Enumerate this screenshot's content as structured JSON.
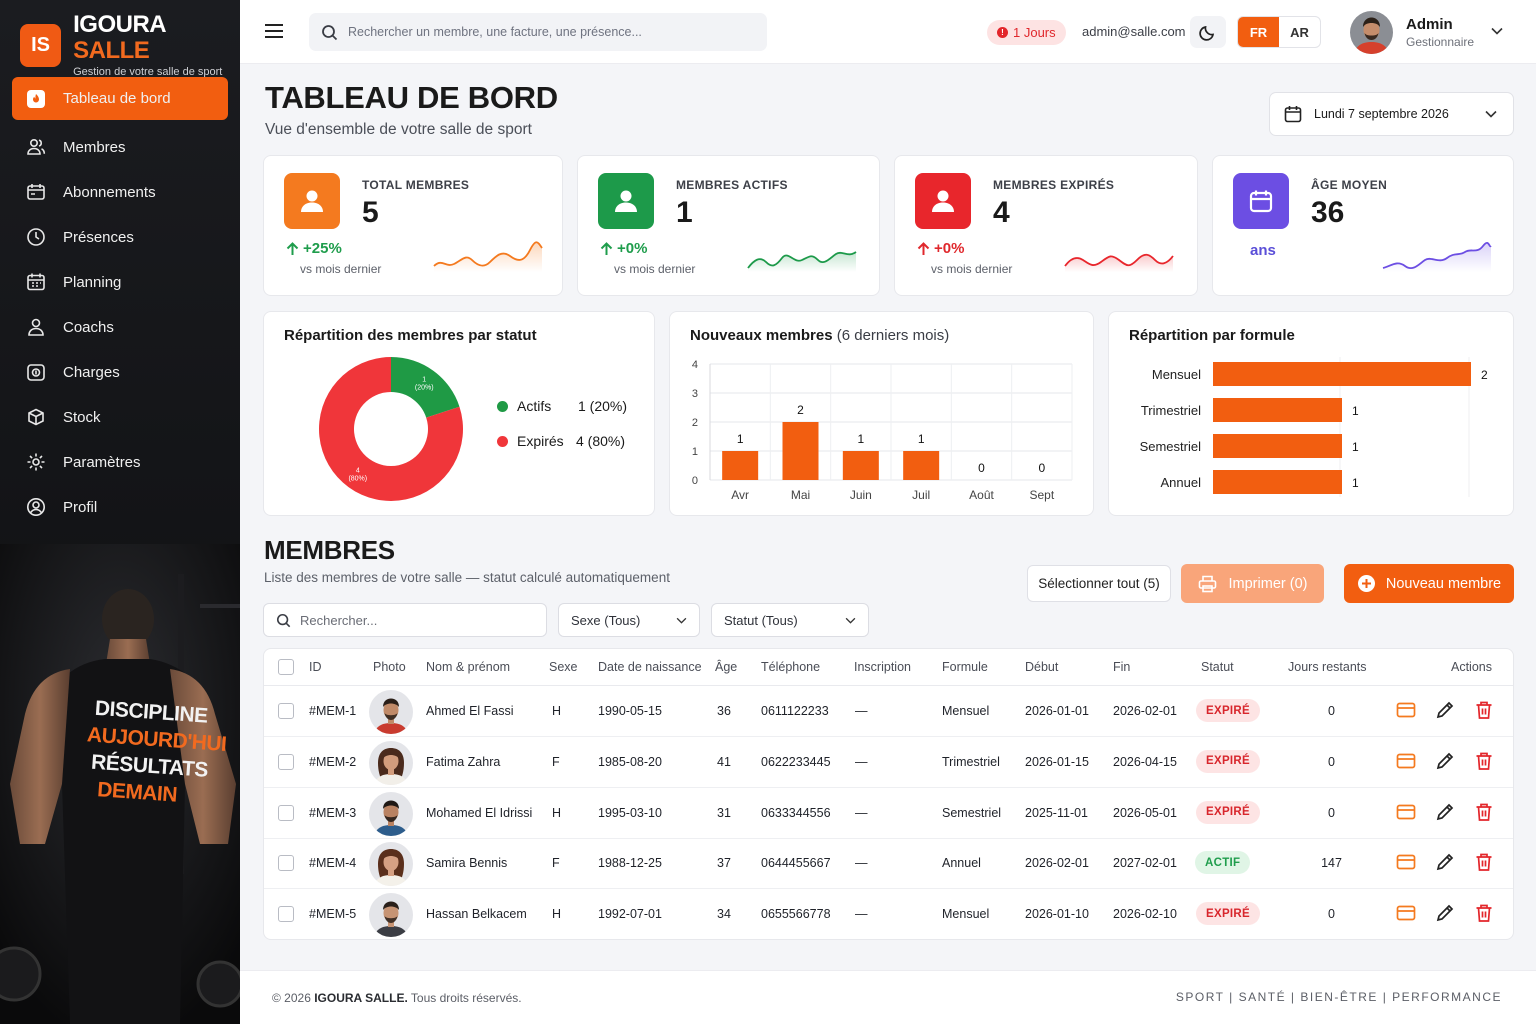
{
  "brand": {
    "logo": "IS",
    "name_main": "IGOURA",
    "name_accent": "SALLE",
    "tagline": "Gestion de votre salle de sport"
  },
  "sidebar": {
    "items": [
      {
        "label": "Tableau de bord",
        "icon": "dashboard-icon",
        "active": true
      },
      {
        "label": "Membres",
        "icon": "users-icon"
      },
      {
        "label": "Abonnements",
        "icon": "card-icon"
      },
      {
        "label": "Présences",
        "icon": "check-circle-icon"
      },
      {
        "label": "Planning",
        "icon": "calendar-icon"
      },
      {
        "label": "Coachs",
        "icon": "user-icon"
      },
      {
        "label": "Charges",
        "icon": "wallet-icon"
      },
      {
        "label": "Stock",
        "icon": "box-icon"
      },
      {
        "label": "Paramètres",
        "icon": "gear-icon"
      },
      {
        "label": "Profil",
        "icon": "profile-icon"
      }
    ],
    "hero_text": [
      "DISCIPLINE",
      "AUJOURD'HUI",
      "RÉSULTATS",
      "DEMAIN"
    ]
  },
  "topbar": {
    "search_placeholder": "Rechercher un membre, une facture, une présence...",
    "days_badge": "1 Jours",
    "email": "admin@salle.com",
    "lang_fr": "FR",
    "lang_ar": "AR",
    "user_name": "Admin",
    "user_role": "Gestionnaire"
  },
  "page": {
    "title": "TABLEAU DE BORD",
    "subtitle": "Vue d'ensemble de votre salle de sport",
    "date": "Lundi 7 septembre 2026"
  },
  "stats": [
    {
      "label": "TOTAL MEMBRES",
      "value": "5",
      "change": "+25%",
      "note": "vs mois dernier",
      "color": "#f47a1f",
      "change_color": "#1f9d4c"
    },
    {
      "label": "MEMBRES ACTIFS",
      "value": "1",
      "change": "+0%",
      "note": "vs mois dernier",
      "color": "#1d9a4a",
      "change_color": "#1f9d4c"
    },
    {
      "label": "MEMBRES EXPIRÉS",
      "value": "4",
      "change": "+0%",
      "note": "vs mois dernier",
      "color": "#e8262c",
      "change_color": "#e0282d"
    },
    {
      "label": "ÂGE MOYEN",
      "value": "36",
      "unit": "ans",
      "color": "#6c4ee3"
    }
  ],
  "charts": {
    "status_title": "Répartition des membres par statut",
    "new_title": "Nouveaux membres",
    "new_title_suffix": "(6 derniers mois)",
    "formula_title": "Répartition par formule"
  },
  "chart_data": [
    {
      "type": "pie",
      "title": "Répartition des membres par statut",
      "labels": [
        "Actifs",
        "Expirés"
      ],
      "values": [
        1,
        4
      ],
      "percent_labels": [
        "1 (20%)",
        "4 (80%)"
      ],
      "colors": [
        "#1f9a45",
        "#f0363a"
      ],
      "slice_text": [
        "1\n(20%)",
        "4\n(80%)"
      ]
    },
    {
      "type": "bar",
      "title": "Nouveaux membres",
      "categories": [
        "Avr",
        "Mai",
        "Juin",
        "Juil",
        "Août",
        "Sept"
      ],
      "values": [
        1,
        2,
        1,
        1,
        0,
        0
      ],
      "ylim": [
        0,
        4
      ],
      "yticks": [
        "0",
        "1",
        "2",
        "3",
        "4"
      ],
      "color": "#f25e10",
      "grid": true
    },
    {
      "type": "bar",
      "orientation": "horizontal",
      "title": "Répartition par formule",
      "categories": [
        "Mensuel",
        "Trimestriel",
        "Semestriel",
        "Annuel"
      ],
      "values": [
        2,
        1,
        1,
        1
      ],
      "xlim": [
        0,
        2
      ],
      "color": "#f25e10"
    }
  ],
  "members": {
    "title": "MEMBRES",
    "subtitle": "Liste des membres de votre salle — statut calculé automatiquement",
    "select_all": "Sélectionner tout (5)",
    "print": "Imprimer (0)",
    "new_member": "Nouveau membre",
    "search_placeholder": "Rechercher...",
    "filter_sex": "Sexe (Tous)",
    "filter_status": "Statut (Tous)",
    "columns": [
      "ID",
      "Photo",
      "Nom & prénom",
      "Sexe",
      "Date de naissance",
      "Âge",
      "Téléphone",
      "Inscription",
      "Formule",
      "Début",
      "Fin",
      "Statut",
      "Jours restants",
      "Actions"
    ],
    "rows": [
      {
        "id": "#MEM-1",
        "name": "Ahmed El Fassi",
        "sex": "H",
        "dob": "1990-05-15",
        "age": "36",
        "phone": "0611122233",
        "inscription": "—",
        "formula": "Mensuel",
        "start": "2026-01-01",
        "end": "2026-02-01",
        "status": "EXPIRÉ",
        "days": "0"
      },
      {
        "id": "#MEM-2",
        "name": "Fatima Zahra",
        "sex": "F",
        "dob": "1985-08-20",
        "age": "41",
        "phone": "0622233445",
        "inscription": "—",
        "formula": "Trimestriel",
        "start": "2026-01-15",
        "end": "2026-04-15",
        "status": "EXPIRÉ",
        "days": "0"
      },
      {
        "id": "#MEM-3",
        "name": "Mohamed El Idrissi",
        "sex": "H",
        "dob": "1995-03-10",
        "age": "31",
        "phone": "0633344556",
        "inscription": "—",
        "formula": "Semestriel",
        "start": "2025-11-01",
        "end": "2026-05-01",
        "status": "EXPIRÉ",
        "days": "0"
      },
      {
        "id": "#MEM-4",
        "name": "Samira Bennis",
        "sex": "F",
        "dob": "1988-12-25",
        "age": "37",
        "phone": "0644455667",
        "inscription": "—",
        "formula": "Annuel",
        "start": "2026-02-01",
        "end": "2027-02-01",
        "status": "ACTIF",
        "days": "147"
      },
      {
        "id": "#MEM-5",
        "name": "Hassan Belkacem",
        "sex": "H",
        "dob": "1992-07-01",
        "age": "34",
        "phone": "0655566778",
        "inscription": "—",
        "formula": "Mensuel",
        "start": "2026-01-10",
        "end": "2026-02-10",
        "status": "EXPIRÉ",
        "days": "0"
      }
    ]
  },
  "footer": {
    "copyright_pre": "© 2026",
    "copyright_brand": "IGOURA SALLE.",
    "copyright_post": "Tous droits réservés.",
    "tagline": "SPORT | SANTÉ | BIEN-ÊTRE | PERFORMANCE"
  }
}
